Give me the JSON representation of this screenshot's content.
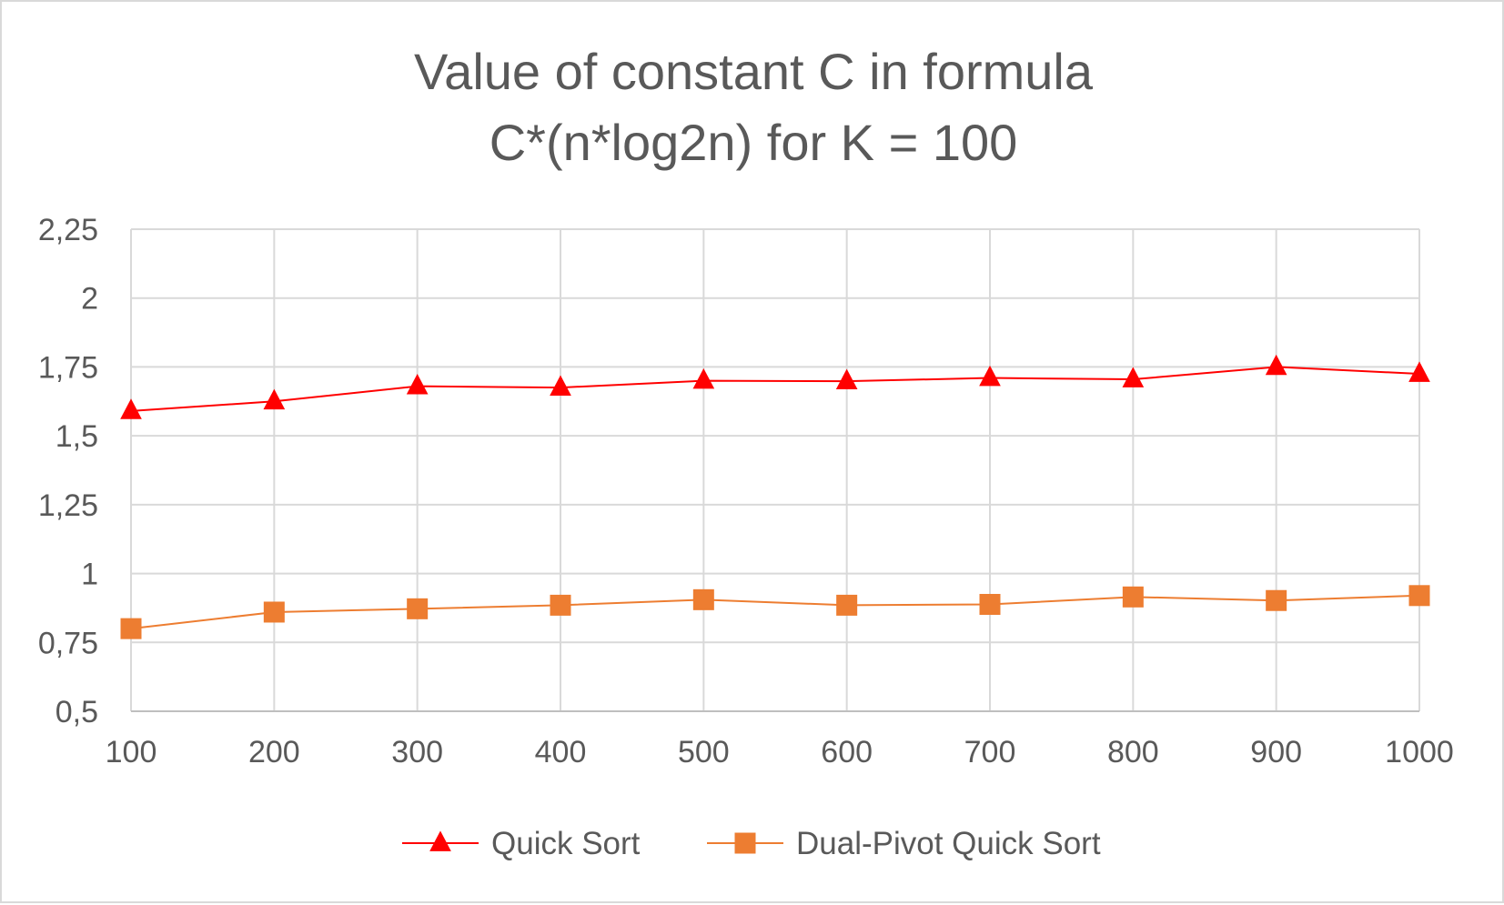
{
  "chart_data": {
    "type": "line",
    "title": [
      "Value of constant C in formula",
      "C*(n*log2n) for K = 100"
    ],
    "categories": [
      "100",
      "200",
      "300",
      "400",
      "500",
      "600",
      "700",
      "800",
      "900",
      "1000"
    ],
    "series": [
      {
        "name": "Quick Sort",
        "color": "#ff0000",
        "marker": "triangle",
        "values": [
          1.59,
          1.625,
          1.68,
          1.675,
          1.7,
          1.698,
          1.71,
          1.705,
          1.75,
          1.725
        ]
      },
      {
        "name": "Dual-Pivot Quick Sort",
        "color": "#ed7d31",
        "marker": "square",
        "values": [
          0.8,
          0.86,
          0.872,
          0.885,
          0.905,
          0.885,
          0.888,
          0.915,
          0.902,
          0.92
        ]
      }
    ],
    "yticks": [
      "0,5",
      "0,75",
      "1",
      "1,25",
      "1,5",
      "1,75",
      "2",
      "2,25"
    ],
    "ylim": [
      0.5,
      2.25
    ],
    "ytick_step": 0.25,
    "grid": true,
    "legend_position": "bottom"
  }
}
